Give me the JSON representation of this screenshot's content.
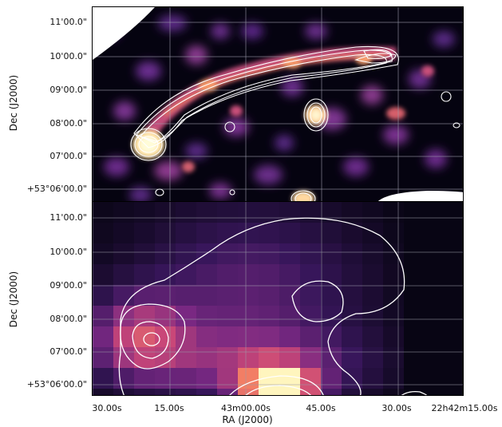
{
  "top_panel": {
    "yticks": [
      "11'00.0\"",
      "10'00.0\"",
      "09'00.0\"",
      "08'00.0\"",
      "07'00.0\"",
      "+53°06'00.0\""
    ],
    "ylabel": "Dec (J2000)"
  },
  "bottom_panel": {
    "yticks": [
      "11'00.0\"",
      "10'00.0\"",
      "09'00.0\"",
      "08'00.0\"",
      "07'00.0\"",
      "+53°06'00.0\""
    ],
    "ylabel": "Dec (J2000)"
  },
  "xaxis": {
    "ticks": [
      "30.00s",
      "15.00s",
      "43m00.00s",
      "45.00s",
      "30.00s",
      "22h42m15.00s"
    ],
    "label": "RA (J2000)"
  },
  "colors": {
    "background": "#000000",
    "contour": "#ffffff",
    "grid": "#9a9aa8"
  }
}
